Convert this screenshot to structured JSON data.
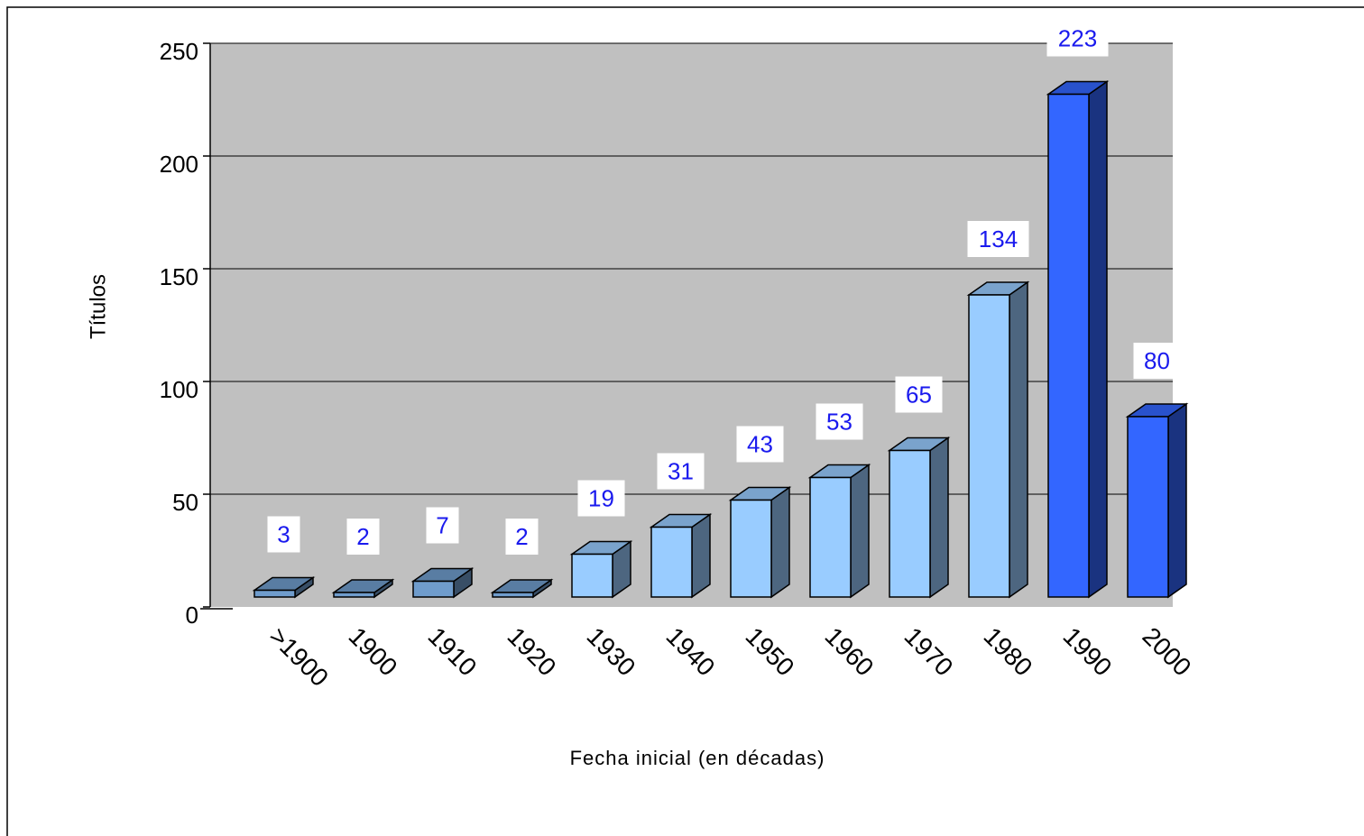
{
  "chart_data": {
    "type": "bar3d",
    "x_label": "Fecha inicial (en décadas)",
    "y_label": "Títulos",
    "categories": [
      ">1900",
      "1900",
      "1910",
      "1920",
      "1930",
      "1940",
      "1950",
      "1960",
      "1970",
      "1980",
      "1990",
      "2000"
    ],
    "values": [
      3,
      2,
      7,
      2,
      19,
      31,
      43,
      53,
      65,
      134,
      223,
      80
    ],
    "colors": [
      "#6f9ccc",
      "#6f9ccc",
      "#6f9ccc",
      "#6f9ccc",
      "#99ccff",
      "#99ccff",
      "#99ccff",
      "#99ccff",
      "#99ccff",
      "#99ccff",
      "#3366ff",
      "#3366ff"
    ],
    "ylim": [
      0,
      250
    ],
    "yticks": [
      0,
      50,
      100,
      150,
      200,
      250
    ],
    "grid": true
  }
}
